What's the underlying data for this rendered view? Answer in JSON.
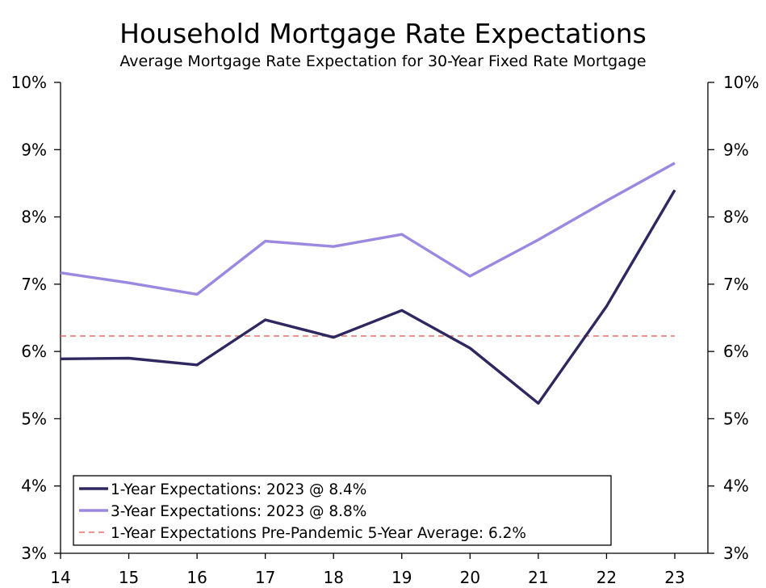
{
  "chart_data": {
    "type": "line",
    "title": "Household Mortgage Rate Expectations",
    "subtitle": "Average Mortgage Rate Expectation for 30-Year Fixed Rate Mortgage",
    "x": [
      "14",
      "15",
      "16",
      "17",
      "18",
      "19",
      "20",
      "21",
      "22",
      "23"
    ],
    "y_ticks": [
      "3%",
      "4%",
      "5%",
      "6%",
      "7%",
      "8%",
      "9%",
      "10%"
    ],
    "ylim": [
      3,
      10
    ],
    "grid": false,
    "legend_position": "bottom-left",
    "series": [
      {
        "name": "1-Year Expectations: 2023 @ 8.4%",
        "color": "#2e2760",
        "style": "solid",
        "values": [
          5.89,
          5.9,
          5.8,
          6.47,
          6.21,
          6.61,
          6.05,
          5.23,
          6.67,
          8.4
        ]
      },
      {
        "name": "3-Year Expectations: 2023 @ 8.8%",
        "color": "#9b88e0",
        "style": "solid",
        "values": [
          7.17,
          7.02,
          6.85,
          7.64,
          7.56,
          7.74,
          7.12,
          7.66,
          8.24,
          8.8
        ]
      },
      {
        "name": "1-Year Expectations Pre-Pandemic 5-Year Average: 6.2%",
        "color": "#e8706a",
        "style": "dashed",
        "values": [
          6.23,
          6.23,
          6.23,
          6.23,
          6.23,
          6.23,
          6.23,
          6.23,
          6.23,
          6.23
        ]
      }
    ]
  }
}
